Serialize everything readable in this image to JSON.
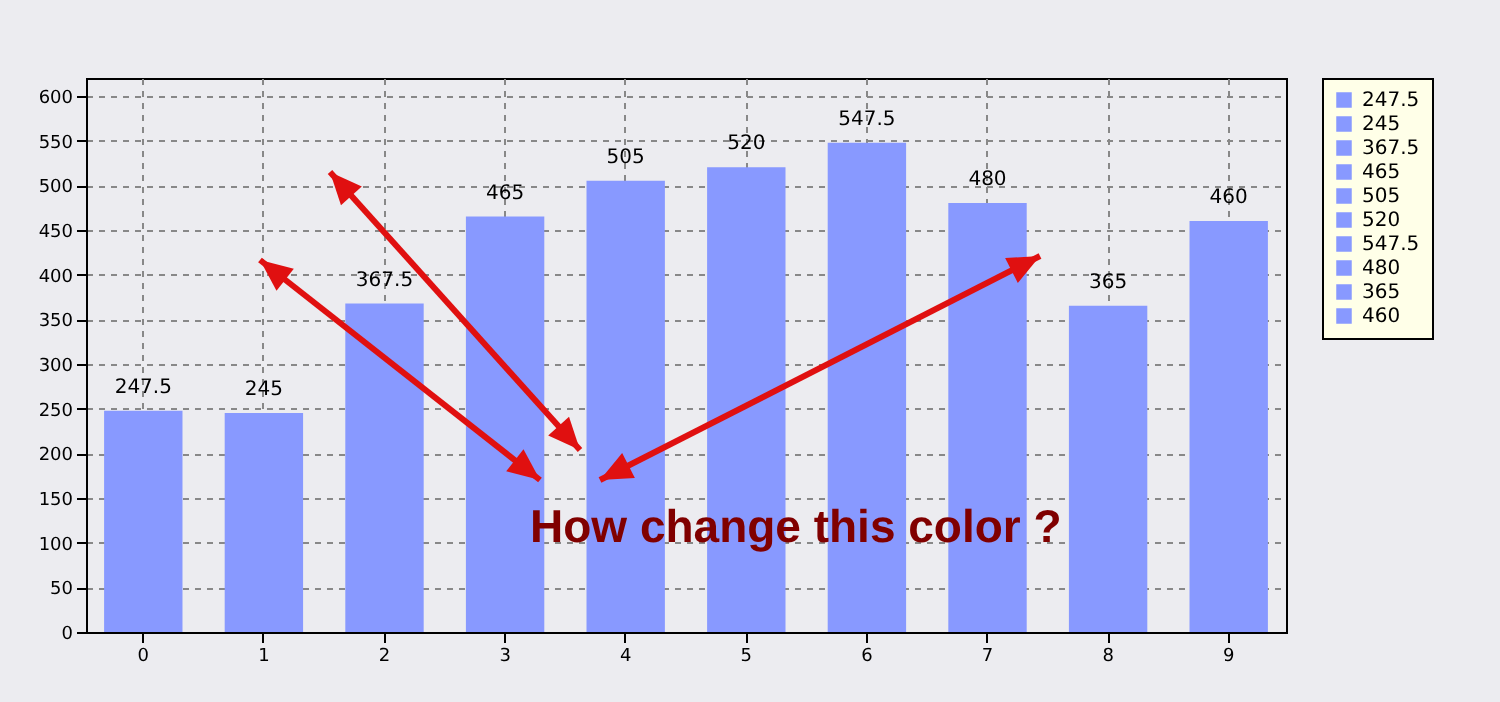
{
  "chart_data": {
    "type": "bar",
    "stacked": true,
    "categories": [
      "0",
      "1",
      "2",
      "3",
      "4",
      "5",
      "6",
      "7",
      "8",
      "9"
    ],
    "series": [
      {
        "name": "247.5",
        "color": "#8899ff",
        "values": [
          247.5,
          null,
          null,
          null,
          null,
          null,
          null,
          null,
          null,
          null
        ]
      },
      {
        "name": "245",
        "color": "#8899ff",
        "values": [
          null,
          245,
          null,
          null,
          null,
          null,
          null,
          null,
          null,
          null
        ]
      },
      {
        "name": "367.5",
        "color": "#8899ff",
        "values": [
          null,
          null,
          367.5,
          null,
          null,
          null,
          null,
          null,
          null,
          null
        ]
      },
      {
        "name": "465",
        "color": "#8899ff",
        "values": [
          null,
          null,
          null,
          465,
          null,
          null,
          null,
          null,
          null,
          null
        ]
      },
      {
        "name": "505",
        "color": "#8899ff",
        "values": [
          null,
          null,
          null,
          null,
          505,
          null,
          null,
          null,
          null,
          null
        ]
      },
      {
        "name": "520",
        "color": "#8899ff",
        "values": [
          null,
          null,
          null,
          null,
          null,
          520,
          null,
          null,
          null,
          null
        ]
      },
      {
        "name": "547.5",
        "color": "#8899ff",
        "values": [
          null,
          null,
          null,
          null,
          null,
          null,
          547.5,
          null,
          null,
          null
        ]
      },
      {
        "name": "480",
        "color": "#8899ff",
        "values": [
          null,
          null,
          null,
          null,
          null,
          null,
          null,
          480,
          null,
          null
        ]
      },
      {
        "name": "365",
        "color": "#8899ff",
        "values": [
          null,
          null,
          null,
          null,
          null,
          null,
          null,
          null,
          365,
          null
        ]
      },
      {
        "name": "460",
        "color": "#8899ff",
        "values": [
          null,
          null,
          null,
          null,
          null,
          null,
          null,
          null,
          null,
          460
        ]
      }
    ],
    "ylim": [
      0,
      620
    ],
    "yticks": [
      0,
      50,
      100,
      150,
      200,
      250,
      300,
      350,
      400,
      450,
      500,
      550,
      600
    ],
    "grid": true,
    "data_labels": true,
    "legend": "right",
    "annotations": [
      "How change this color ?"
    ]
  }
}
